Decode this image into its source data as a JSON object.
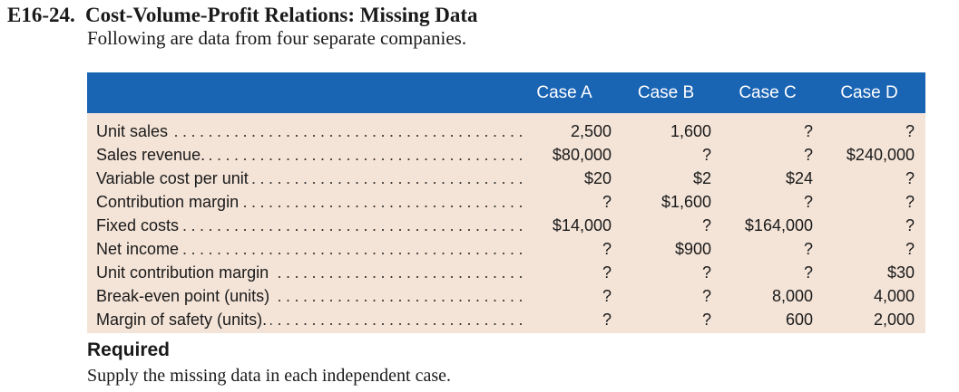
{
  "exercise": {
    "number": "E16-24.",
    "title": "Cost-Volume-Profit Relations: Missing Data",
    "intro": "Following are data from four separate companies."
  },
  "table": {
    "columns": [
      "Case A",
      "Case B",
      "Case C",
      "Case D"
    ],
    "rows": [
      {
        "label": "Unit sales",
        "values": [
          "2,500",
          "1,600",
          "?",
          "?"
        ]
      },
      {
        "label": "Sales revenue.",
        "values": [
          "$80,000",
          "?",
          "?",
          "$240,000"
        ]
      },
      {
        "label": "Variable cost per unit",
        "values": [
          "$20",
          "$2",
          "$24",
          "?"
        ]
      },
      {
        "label": "Contribution margin",
        "values": [
          "?",
          "$1,600",
          "?",
          "?"
        ]
      },
      {
        "label": "Fixed costs",
        "values": [
          "$14,000",
          "?",
          "$164,000",
          "?"
        ]
      },
      {
        "label": "Net income",
        "values": [
          "?",
          "$900",
          "?",
          "?"
        ]
      },
      {
        "label": "Unit contribution margin",
        "values": [
          "?",
          "?",
          "?",
          "$30"
        ]
      },
      {
        "label": "Break-even point (units)",
        "values": [
          "?",
          "?",
          "8,000",
          "4,000"
        ]
      },
      {
        "label": "Margin of safety (units).",
        "values": [
          "?",
          "?",
          "600",
          "2,000"
        ]
      }
    ]
  },
  "required": {
    "title": "Required",
    "text": "Supply the missing data in each independent case."
  },
  "colors": {
    "header_bg": "#1a64b4",
    "table_bg": "#f4e4d8"
  }
}
